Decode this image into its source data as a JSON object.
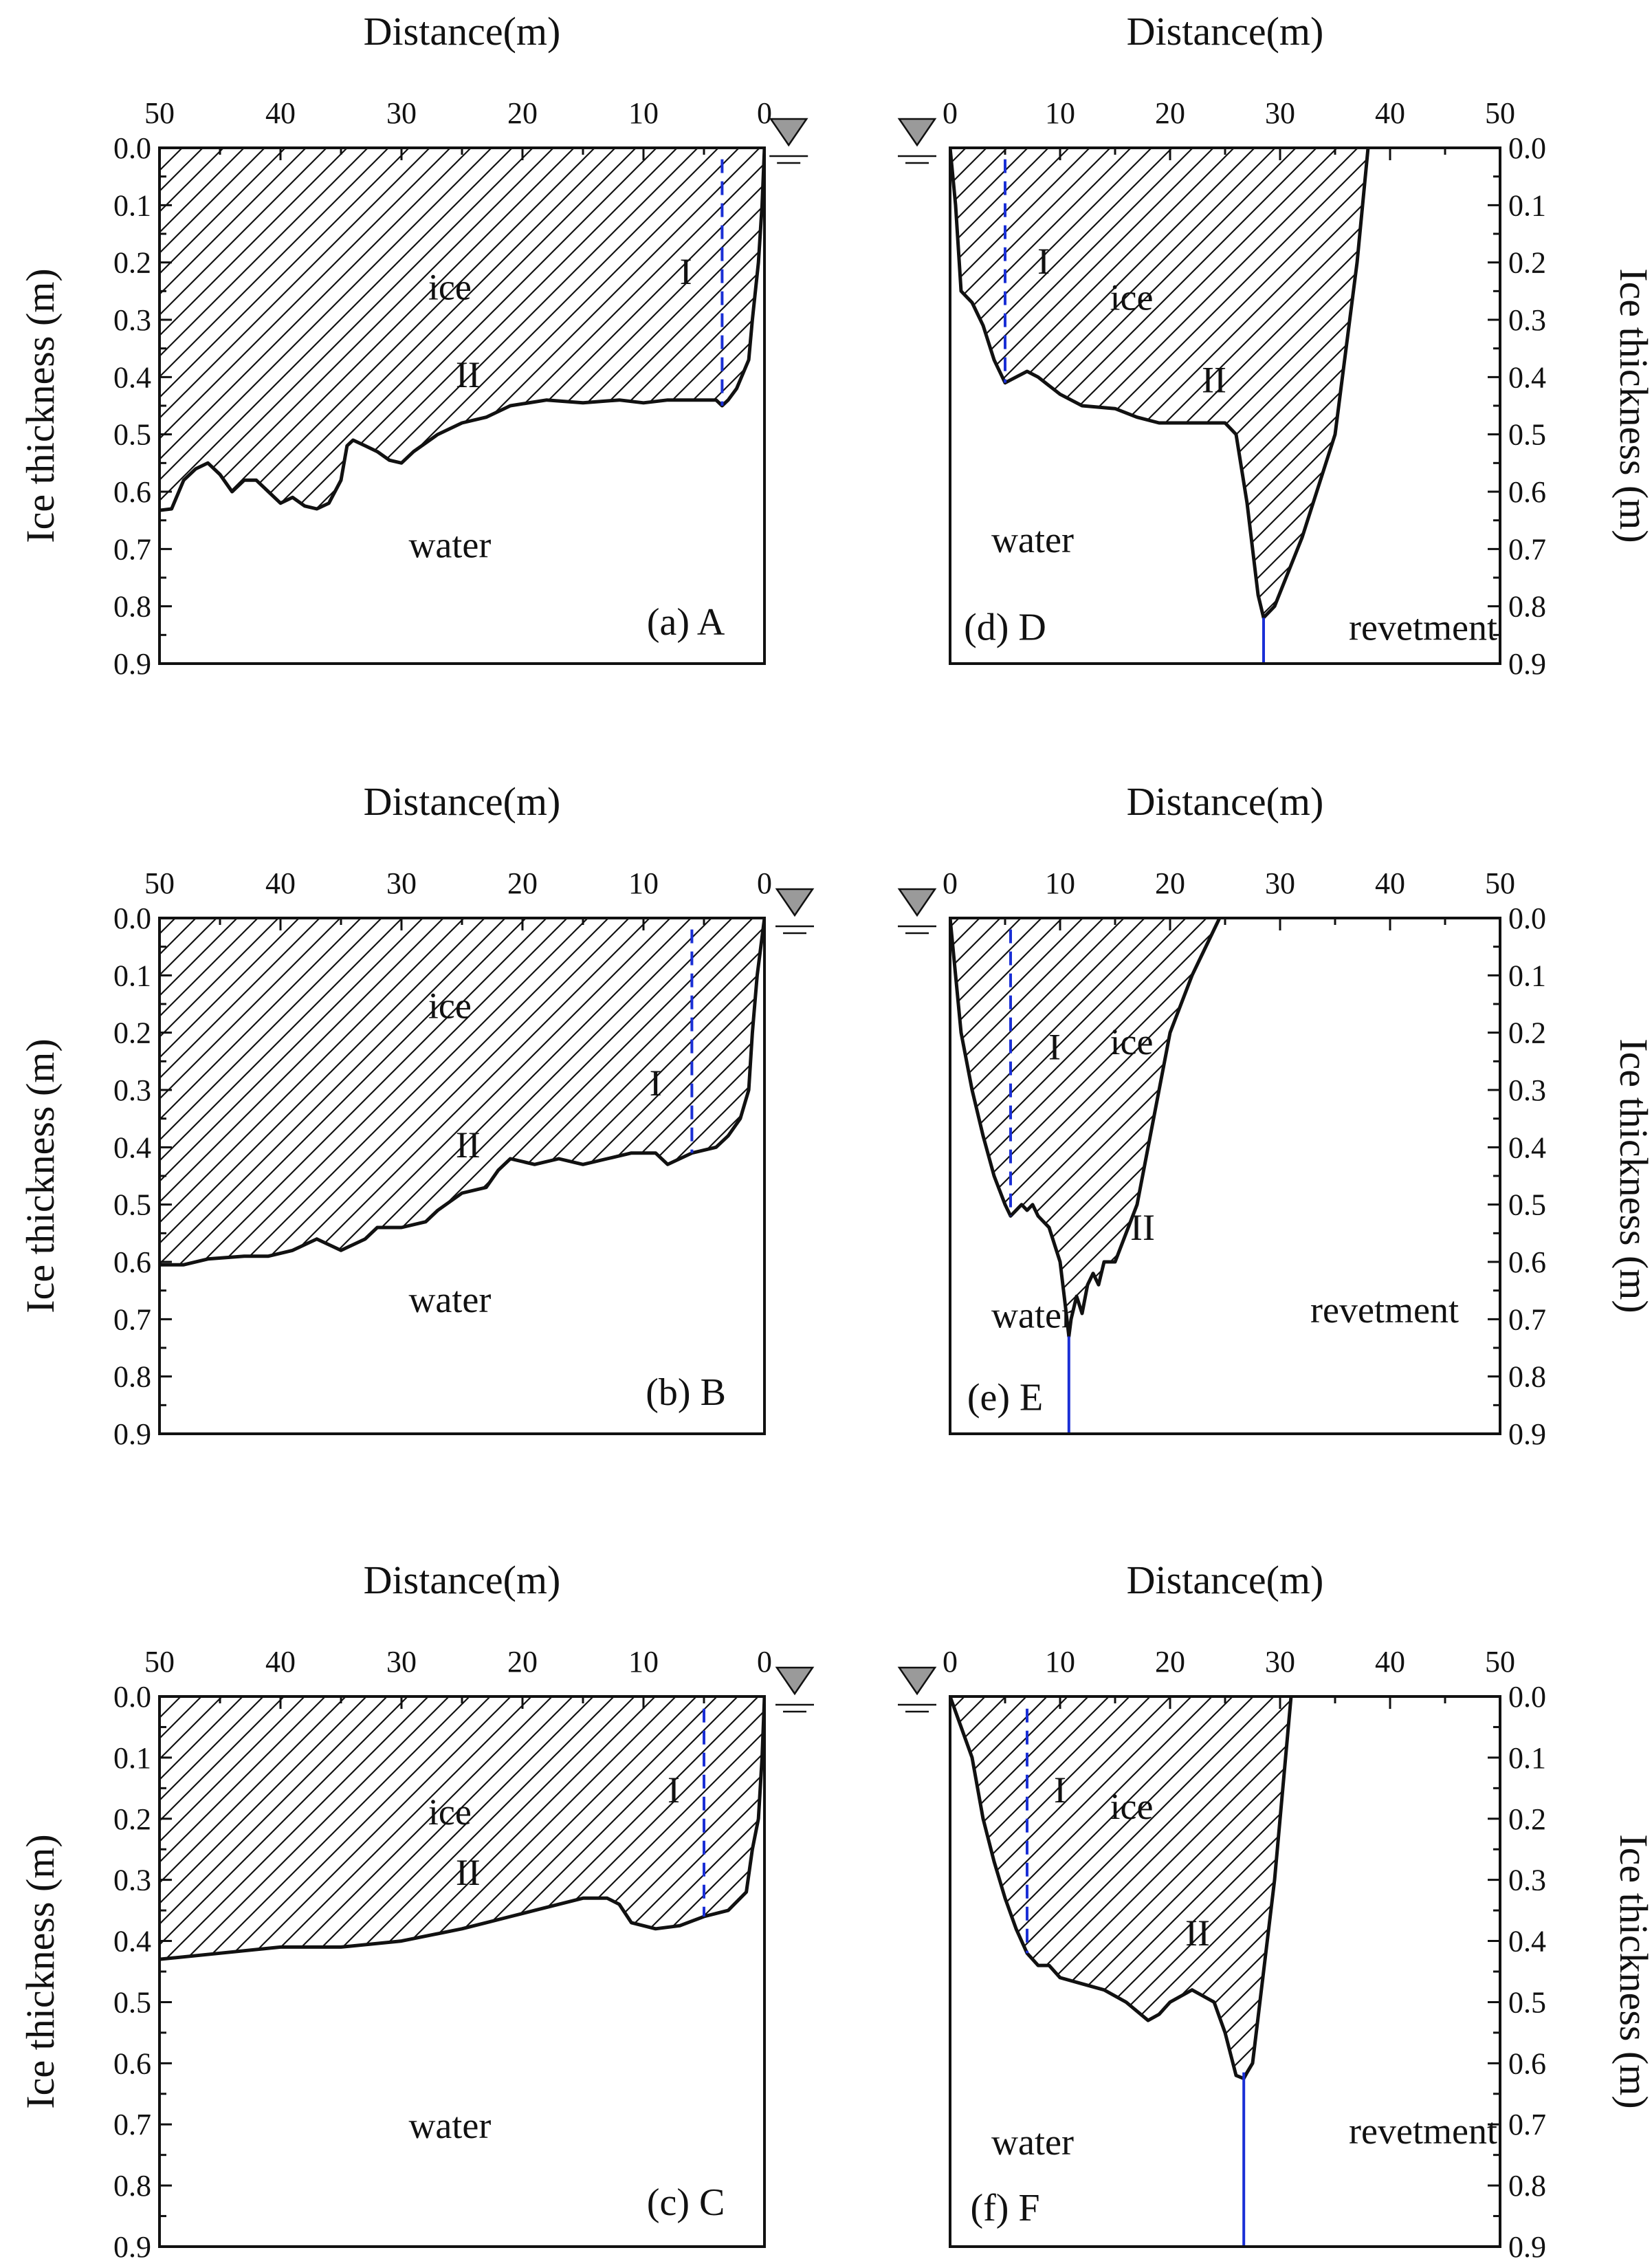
{
  "colors": {
    "ink": "#111111",
    "boundary": "#1a2fd6",
    "water_symbol": "#9a9a9a",
    "background": "#ffffff"
  },
  "chart_data": [
    {
      "type": "area",
      "panel_label": "(a) A",
      "side": "left",
      "x_direction": "reversed",
      "xlabel": "Distance(m)",
      "ylabel": "Ice thickness (m)",
      "xlim": [
        50,
        0
      ],
      "ylim": [
        0,
        0.9
      ],
      "xticks": [
        "50",
        "40",
        "30",
        "20",
        "10",
        "0"
      ],
      "yticks": [
        "0.0",
        "0.1",
        "0.2",
        "0.3",
        "0.4",
        "0.5",
        "0.6",
        "0.7",
        "0.8",
        "0.9"
      ],
      "water_level_x": -2,
      "zone_boundary": {
        "x": 3.5,
        "depth": 0.45,
        "style": "dashed"
      },
      "labels": {
        "ice": "ice",
        "water": "water",
        "zone1": "I",
        "zone2": "II"
      },
      "ice_bottom": [
        [
          0,
          0
        ],
        [
          0.2,
          0.1
        ],
        [
          0.5,
          0.2
        ],
        [
          1,
          0.3
        ],
        [
          1.3,
          0.37
        ],
        [
          2.3,
          0.42
        ],
        [
          3,
          0.44
        ],
        [
          3.5,
          0.45
        ],
        [
          4,
          0.44
        ],
        [
          6,
          0.44
        ],
        [
          8,
          0.44
        ],
        [
          10,
          0.445
        ],
        [
          12,
          0.44
        ],
        [
          15,
          0.445
        ],
        [
          18,
          0.44
        ],
        [
          21,
          0.45
        ],
        [
          23,
          0.47
        ],
        [
          25,
          0.48
        ],
        [
          27,
          0.5
        ],
        [
          29,
          0.53
        ],
        [
          30,
          0.55
        ],
        [
          31,
          0.545
        ],
        [
          32,
          0.53
        ],
        [
          33,
          0.52
        ],
        [
          34,
          0.51
        ],
        [
          34.5,
          0.52
        ],
        [
          35,
          0.58
        ],
        [
          36,
          0.62
        ],
        [
          37,
          0.63
        ],
        [
          38,
          0.625
        ],
        [
          39,
          0.61
        ],
        [
          40,
          0.62
        ],
        [
          41,
          0.6
        ],
        [
          42,
          0.58
        ],
        [
          43,
          0.58
        ],
        [
          44,
          0.6
        ],
        [
          45,
          0.57
        ],
        [
          46,
          0.55
        ],
        [
          47,
          0.56
        ],
        [
          48,
          0.58
        ],
        [
          49,
          0.63
        ],
        [
          51,
          0.635
        ]
      ]
    },
    {
      "type": "area",
      "panel_label": "(b) B",
      "side": "left",
      "x_direction": "reversed",
      "xlabel": "Distance(m)",
      "ylabel": "Ice thickness (m)",
      "xlim": [
        50,
        0
      ],
      "ylim": [
        0,
        0.9
      ],
      "xticks": [
        "50",
        "40",
        "30",
        "20",
        "10",
        "0"
      ],
      "yticks": [
        "0.0",
        "0.1",
        "0.2",
        "0.3",
        "0.4",
        "0.5",
        "0.6",
        "0.7",
        "0.8",
        "0.9"
      ],
      "water_level_x": -2.5,
      "zone_boundary": {
        "x": 6,
        "depth": 0.41,
        "style": "dashed"
      },
      "labels": {
        "ice": "ice",
        "water": "water",
        "zone1": "I",
        "zone2": "II"
      },
      "ice_bottom": [
        [
          0,
          0
        ],
        [
          0.3,
          0.05
        ],
        [
          0.6,
          0.1
        ],
        [
          1,
          0.2
        ],
        [
          1.3,
          0.3
        ],
        [
          2,
          0.35
        ],
        [
          3,
          0.38
        ],
        [
          4,
          0.4
        ],
        [
          6,
          0.41
        ],
        [
          8,
          0.43
        ],
        [
          9,
          0.41
        ],
        [
          11,
          0.41
        ],
        [
          13,
          0.42
        ],
        [
          15,
          0.43
        ],
        [
          17,
          0.42
        ],
        [
          19,
          0.43
        ],
        [
          21,
          0.42
        ],
        [
          22,
          0.44
        ],
        [
          23,
          0.47
        ],
        [
          25,
          0.48
        ],
        [
          27,
          0.51
        ],
        [
          28,
          0.53
        ],
        [
          30,
          0.54
        ],
        [
          32,
          0.54
        ],
        [
          33,
          0.56
        ],
        [
          34,
          0.57
        ],
        [
          35,
          0.58
        ],
        [
          36,
          0.57
        ],
        [
          37,
          0.56
        ],
        [
          38,
          0.57
        ],
        [
          39,
          0.58
        ],
        [
          41,
          0.59
        ],
        [
          43,
          0.59
        ],
        [
          46,
          0.595
        ],
        [
          48,
          0.605
        ],
        [
          51,
          0.605
        ]
      ]
    },
    {
      "type": "area",
      "panel_label": "(c) C",
      "side": "left",
      "x_direction": "reversed",
      "xlabel": "Distance(m)",
      "ylabel": "Ice thickness (m)",
      "xlim": [
        50,
        0
      ],
      "ylim": [
        0,
        0.9
      ],
      "xticks": [
        "50",
        "40",
        "30",
        "20",
        "10",
        "0"
      ],
      "yticks": [
        "0.0",
        "0.1",
        "0.2",
        "0.3",
        "0.4",
        "0.5",
        "0.6",
        "0.7",
        "0.8",
        "0.9"
      ],
      "water_level_x": -2.5,
      "zone_boundary": {
        "x": 5,
        "depth": 0.36,
        "style": "dashed"
      },
      "labels": {
        "ice": "ice",
        "water": "water",
        "zone1": "I",
        "zone2": "II"
      },
      "ice_bottom": [
        [
          0,
          0
        ],
        [
          0.2,
          0.1
        ],
        [
          0.5,
          0.2
        ],
        [
          1,
          0.25
        ],
        [
          1.5,
          0.32
        ],
        [
          3,
          0.35
        ],
        [
          5,
          0.36
        ],
        [
          7,
          0.375
        ],
        [
          9,
          0.38
        ],
        [
          11,
          0.37
        ],
        [
          12,
          0.34
        ],
        [
          13,
          0.33
        ],
        [
          15,
          0.33
        ],
        [
          17,
          0.34
        ],
        [
          19,
          0.35
        ],
        [
          21,
          0.36
        ],
        [
          23,
          0.37
        ],
        [
          25,
          0.38
        ],
        [
          30,
          0.4
        ],
        [
          35,
          0.41
        ],
        [
          40,
          0.41
        ],
        [
          45,
          0.42
        ],
        [
          50,
          0.43
        ],
        [
          51,
          0.43
        ]
      ]
    },
    {
      "type": "area",
      "panel_label": "(d) D",
      "side": "right",
      "x_direction": "normal",
      "xlabel": "Distance(m)",
      "ylabel": "Ice thickness (m)",
      "xlim": [
        0,
        50
      ],
      "ylim": [
        0,
        0.9
      ],
      "xticks": [
        "0",
        "10",
        "20",
        "30",
        "40",
        "50"
      ],
      "yticks": [
        "0.0",
        "0.1",
        "0.2",
        "0.3",
        "0.4",
        "0.5",
        "0.6",
        "0.7",
        "0.8",
        "0.9"
      ],
      "water_level_x": -3,
      "zone_boundary": {
        "x": 5,
        "depth": 0.41,
        "style": "dashed"
      },
      "revetment_x": 28.5,
      "labels": {
        "ice": "ice",
        "water": "water",
        "zone1": "I",
        "zone2": "II",
        "revetment": "revetment"
      },
      "ice_bottom": [
        [
          0,
          0
        ],
        [
          0.5,
          0.1
        ],
        [
          1,
          0.25
        ],
        [
          2,
          0.27
        ],
        [
          3,
          0.31
        ],
        [
          4,
          0.37
        ],
        [
          5,
          0.41
        ],
        [
          6,
          0.4
        ],
        [
          7,
          0.39
        ],
        [
          8,
          0.4
        ],
        [
          10,
          0.43
        ],
        [
          12,
          0.45
        ],
        [
          15,
          0.455
        ],
        [
          17,
          0.47
        ],
        [
          19,
          0.48
        ],
        [
          21,
          0.48
        ],
        [
          23,
          0.48
        ],
        [
          25,
          0.48
        ],
        [
          26,
          0.5
        ],
        [
          27,
          0.62
        ],
        [
          28,
          0.78
        ],
        [
          28.5,
          0.82
        ]
      ],
      "ice_top_right": [
        [
          28.5,
          0.82
        ],
        [
          29.5,
          0.8
        ],
        [
          32,
          0.68
        ],
        [
          35,
          0.5
        ],
        [
          37,
          0.2
        ],
        [
          38,
          0
        ]
      ]
    },
    {
      "type": "area",
      "panel_label": "(e) E",
      "side": "right",
      "x_direction": "normal",
      "xlabel": "Distance(m)",
      "ylabel": "Ice thickness (m)",
      "xlim": [
        0,
        50
      ],
      "ylim": [
        0,
        0.9
      ],
      "xticks": [
        "0",
        "10",
        "20",
        "30",
        "40",
        "50"
      ],
      "yticks": [
        "0.0",
        "0.1",
        "0.2",
        "0.3",
        "0.4",
        "0.5",
        "0.6",
        "0.7",
        "0.8",
        "0.9"
      ],
      "water_level_x": -3,
      "zone_boundary": {
        "x": 5.5,
        "depth": 0.52,
        "style": "dashed"
      },
      "revetment_x": 10.8,
      "labels": {
        "ice": "ice",
        "water": "water",
        "zone1": "I",
        "zone2": "II",
        "revetment": "revetment"
      },
      "ice_bottom": [
        [
          0,
          0
        ],
        [
          0.5,
          0.1
        ],
        [
          1,
          0.2
        ],
        [
          2,
          0.3
        ],
        [
          3,
          0.38
        ],
        [
          4,
          0.45
        ],
        [
          5,
          0.5
        ],
        [
          5.5,
          0.52
        ],
        [
          6,
          0.51
        ],
        [
          6.5,
          0.5
        ],
        [
          7,
          0.51
        ],
        [
          7.5,
          0.5
        ],
        [
          8,
          0.52
        ],
        [
          9,
          0.54
        ],
        [
          10,
          0.6
        ],
        [
          10.5,
          0.68
        ],
        [
          10.8,
          0.73
        ]
      ],
      "ice_top_right": [
        [
          10.8,
          0.73
        ],
        [
          11,
          0.7
        ],
        [
          11.5,
          0.66
        ],
        [
          12,
          0.69
        ],
        [
          12.5,
          0.64
        ],
        [
          13,
          0.62
        ],
        [
          13.5,
          0.64
        ],
        [
          14,
          0.6
        ],
        [
          15,
          0.6
        ],
        [
          16,
          0.55
        ],
        [
          17,
          0.5
        ],
        [
          18,
          0.4
        ],
        [
          19,
          0.3
        ],
        [
          20,
          0.2
        ],
        [
          21,
          0.15
        ],
        [
          22,
          0.1
        ],
        [
          23,
          0.06
        ],
        [
          24.5,
          0
        ]
      ]
    },
    {
      "type": "area",
      "panel_label": "(f) F",
      "side": "right",
      "x_direction": "normal",
      "xlabel": "Distance(m)",
      "ylabel": "Ice thickness (m)",
      "xlim": [
        0,
        50
      ],
      "ylim": [
        0,
        0.9
      ],
      "xticks": [
        "0",
        "10",
        "20",
        "30",
        "40",
        "50"
      ],
      "yticks": [
        "0.0",
        "0.1",
        "0.2",
        "0.3",
        "0.4",
        "0.5",
        "0.6",
        "0.7",
        "0.8",
        "0.9"
      ],
      "water_level_x": -3,
      "zone_boundary": {
        "x": 7,
        "depth": 0.42,
        "style": "dashed"
      },
      "revetment_x": 26.7,
      "labels": {
        "ice": "ice",
        "water": "water",
        "zone1": "I",
        "zone2": "II",
        "revetment": "revetment"
      },
      "ice_bottom": [
        [
          0,
          0
        ],
        [
          1,
          0.05
        ],
        [
          2,
          0.1
        ],
        [
          3,
          0.2
        ],
        [
          4,
          0.27
        ],
        [
          5,
          0.33
        ],
        [
          6,
          0.38
        ],
        [
          7,
          0.42
        ],
        [
          8,
          0.44
        ],
        [
          9,
          0.44
        ],
        [
          10,
          0.46
        ],
        [
          12,
          0.47
        ],
        [
          14,
          0.48
        ],
        [
          16,
          0.5
        ],
        [
          18,
          0.53
        ],
        [
          19,
          0.52
        ],
        [
          20,
          0.5
        ],
        [
          22,
          0.48
        ],
        [
          24,
          0.5
        ],
        [
          25,
          0.55
        ],
        [
          26,
          0.62
        ],
        [
          26.7,
          0.625
        ],
        [
          27,
          0.615
        ]
      ],
      "ice_top_right": [
        [
          27,
          0.615
        ],
        [
          27.5,
          0.6
        ],
        [
          28.5,
          0.45
        ],
        [
          29.5,
          0.3
        ],
        [
          30,
          0.2
        ],
        [
          30.5,
          0.1
        ],
        [
          31,
          0
        ]
      ]
    }
  ]
}
